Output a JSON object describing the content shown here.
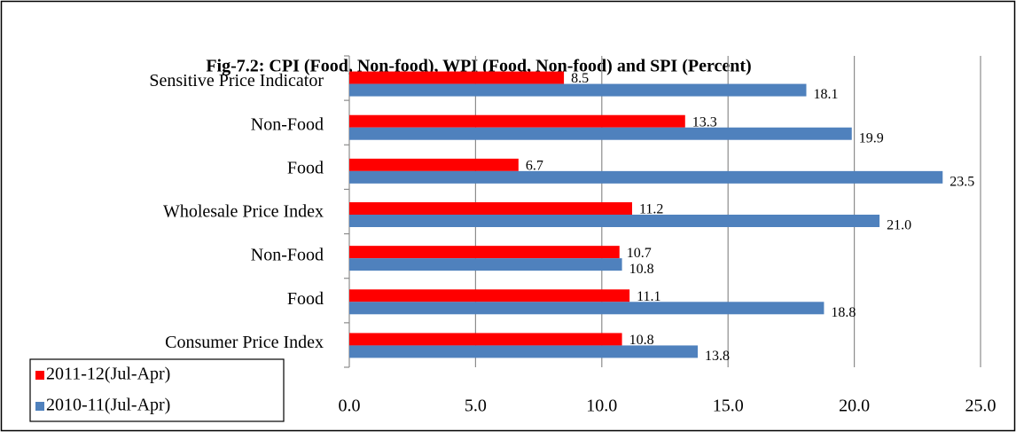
{
  "chart_data": {
    "type": "barh",
    "title": "Fig-7.2: CPI (Food, Non-food), WPI (Food, Non-food) and SPI (Percent)",
    "categories": [
      "Sensitive Price Indicator",
      "Non-Food",
      "Food",
      "Wholesale Price Index",
      "Non-Food",
      "Food",
      "Consumer Price Index"
    ],
    "series": [
      {
        "name": "2011-12(Jul-Apr)",
        "color": "#ff0000",
        "values": [
          8.5,
          13.3,
          6.7,
          11.2,
          10.7,
          11.1,
          10.8
        ],
        "value_labels": [
          "8.5",
          "13.3",
          "6.7",
          "11.2",
          "10.7",
          "11.1",
          "10.8"
        ]
      },
      {
        "name": "2010-11(Jul-Apr)",
        "color": "#4f81bd",
        "values": [
          18.1,
          19.9,
          23.5,
          21.0,
          10.8,
          18.8,
          13.8
        ],
        "value_labels": [
          "18.1",
          "19.9",
          "23.5",
          "21.0",
          "10.8",
          "18.8",
          "13.8"
        ]
      }
    ],
    "xlim": [
      0,
      25
    ],
    "xticks": [
      {
        "value": 0,
        "label": "0.0"
      },
      {
        "value": 5,
        "label": "5.0"
      },
      {
        "value": 10,
        "label": "10.0"
      },
      {
        "value": 15,
        "label": "15.0"
      },
      {
        "value": 20,
        "label": "20.0"
      },
      {
        "value": 25,
        "label": "25.0"
      }
    ],
    "grid": true,
    "legend": "bottom-left"
  }
}
